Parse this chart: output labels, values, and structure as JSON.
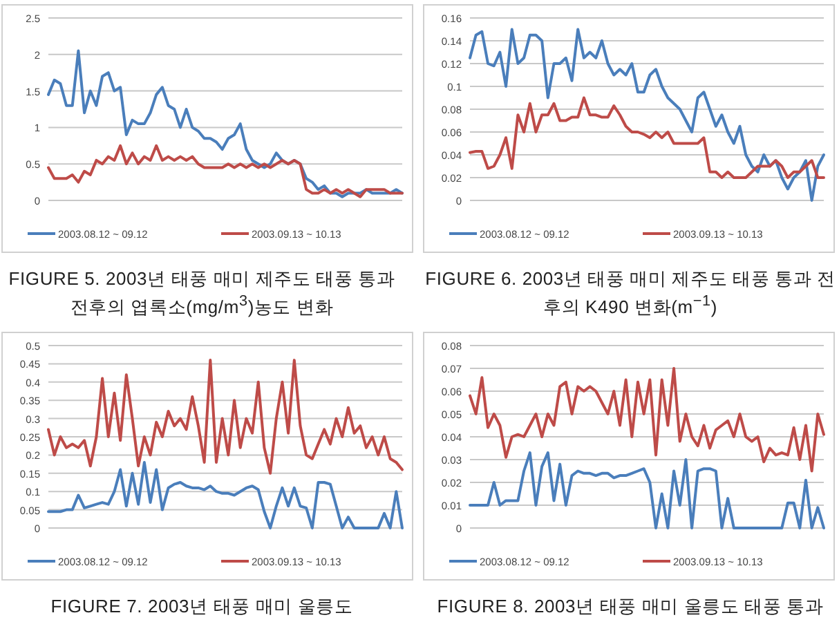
{
  "chart_data": [
    {
      "type": "line",
      "title": "FIGURE 5. 2003년 태풍 매미 제주도 태풍 통과 전후의 엽록소(mg/m$^{3}$)농도 변화",
      "categories": [
        null,
        null,
        null,
        null,
        null,
        null,
        null,
        null,
        null,
        null,
        null,
        null,
        null,
        null,
        null,
        null,
        null,
        null,
        null,
        null,
        null,
        null,
        null,
        null,
        null,
        null,
        null,
        null,
        null,
        null,
        null,
        null,
        null,
        null,
        null,
        null,
        null,
        null,
        null,
        null,
        null,
        null,
        null,
        null,
        null,
        null,
        null,
        null,
        null,
        null,
        null,
        null,
        null,
        null,
        null,
        null,
        null,
        null,
        null,
        null
      ],
      "ylim": [
        0,
        2.5
      ],
      "yticks": [
        0,
        0.5,
        1,
        1.5,
        2,
        2.5
      ],
      "grid": "y",
      "legend": "bottom",
      "tick_labels": "y",
      "series": [
        {
          "name": "2003.08.12 ~ 09.12",
          "color": "#4a7ebb",
          "values": [
            1.45,
            1.65,
            1.6,
            1.3,
            1.3,
            2.05,
            1.2,
            1.5,
            1.3,
            1.7,
            1.75,
            1.5,
            1.55,
            0.9,
            1.1,
            1.05,
            1.05,
            1.2,
            1.45,
            1.55,
            1.3,
            1.25,
            1.0,
            1.25,
            1.0,
            0.95,
            0.85,
            0.85,
            0.8,
            0.7,
            0.85,
            0.9,
            1.05,
            0.7,
            0.55,
            0.5,
            0.45,
            0.5,
            0.65,
            0.55,
            0.5,
            0.55,
            0.5,
            0.3,
            0.25,
            0.15,
            0.2,
            0.1,
            0.1,
            0.05,
            0.1,
            0.1,
            0.1,
            0.15,
            0.1,
            0.1,
            0.1,
            0.1,
            0.15,
            0.1
          ]
        },
        {
          "name": "2003.09.13 ~ 10.13",
          "color": "#be4b48",
          "values": [
            0.45,
            0.3,
            0.3,
            0.3,
            0.35,
            0.25,
            0.4,
            0.35,
            0.55,
            0.5,
            0.6,
            0.55,
            0.75,
            0.5,
            0.65,
            0.5,
            0.6,
            0.55,
            0.75,
            0.55,
            0.6,
            0.55,
            0.6,
            0.55,
            0.6,
            0.5,
            0.45,
            0.45,
            0.45,
            0.45,
            0.5,
            0.45,
            0.5,
            0.45,
            0.5,
            0.45,
            0.5,
            0.45,
            0.5,
            0.55,
            0.5,
            0.55,
            0.5,
            0.15,
            0.1,
            0.1,
            0.15,
            0.1,
            0.15,
            0.1,
            0.15,
            0.1,
            0.05,
            0.15,
            0.15,
            0.15,
            0.15,
            0.1,
            0.1,
            0.1
          ]
        }
      ]
    },
    {
      "type": "line",
      "title": "FIGURE 6. 2003년 태풍 매미 제주도 태풍 통과 전후의 K490 변화(m$^{−1}$)",
      "categories": [
        null,
        null,
        null,
        null,
        null,
        null,
        null,
        null,
        null,
        null,
        null,
        null,
        null,
        null,
        null,
        null,
        null,
        null,
        null,
        null,
        null,
        null,
        null,
        null,
        null,
        null,
        null,
        null,
        null,
        null,
        null,
        null,
        null,
        null,
        null,
        null,
        null,
        null,
        null,
        null,
        null,
        null,
        null,
        null,
        null,
        null,
        null,
        null,
        null,
        null,
        null,
        null,
        null,
        null,
        null,
        null,
        null,
        null,
        null,
        null
      ],
      "ylim": [
        0,
        0.16
      ],
      "yticks": [
        0,
        0.02,
        0.04,
        0.06,
        0.08,
        0.1,
        0.12,
        0.14,
        0.16
      ],
      "grid": "y",
      "legend": "bottom",
      "tick_labels": "y",
      "series": [
        {
          "name": "2003.08.12 ~ 09.12",
          "color": "#4a7ebb",
          "values": [
            0.125,
            0.145,
            0.148,
            0.12,
            0.118,
            0.13,
            0.1,
            0.15,
            0.12,
            0.125,
            0.145,
            0.145,
            0.14,
            0.09,
            0.12,
            0.12,
            0.125,
            0.105,
            0.15,
            0.125,
            0.13,
            0.125,
            0.14,
            0.12,
            0.11,
            0.115,
            0.11,
            0.12,
            0.095,
            0.095,
            0.11,
            0.115,
            0.1,
            0.09,
            0.085,
            0.08,
            0.07,
            0.06,
            0.09,
            0.095,
            0.08,
            0.065,
            0.075,
            0.06,
            0.05,
            0.065,
            0.04,
            0.03,
            0.025,
            0.04,
            0.03,
            0.035,
            0.02,
            0.01,
            0.02,
            0.025,
            0.035,
            0.0,
            0.03,
            0.04
          ]
        },
        {
          "name": "2003.09.13 ~ 10.13",
          "color": "#be4b48",
          "values": [
            0.042,
            0.043,
            0.043,
            0.028,
            0.03,
            0.04,
            0.055,
            0.028,
            0.075,
            0.06,
            0.085,
            0.06,
            0.075,
            0.075,
            0.085,
            0.07,
            0.07,
            0.073,
            0.073,
            0.09,
            0.075,
            0.075,
            0.073,
            0.073,
            0.083,
            0.075,
            0.065,
            0.06,
            0.06,
            0.058,
            0.055,
            0.06,
            0.055,
            0.06,
            0.05,
            0.05,
            0.05,
            0.05,
            0.05,
            0.055,
            0.025,
            0.025,
            0.02,
            0.025,
            0.02,
            0.02,
            0.02,
            0.025,
            0.03,
            0.03,
            0.03,
            0.035,
            0.03,
            0.02,
            0.025,
            0.025,
            0.03,
            0.035,
            0.02,
            0.02
          ]
        }
      ]
    },
    {
      "type": "line",
      "title": "FIGURE 7. 2003년 태풍 매미 울릉도",
      "categories": [
        null,
        null,
        null,
        null,
        null,
        null,
        null,
        null,
        null,
        null,
        null,
        null,
        null,
        null,
        null,
        null,
        null,
        null,
        null,
        null,
        null,
        null,
        null,
        null,
        null,
        null,
        null,
        null,
        null,
        null,
        null,
        null,
        null,
        null,
        null,
        null,
        null,
        null,
        null,
        null,
        null,
        null,
        null,
        null,
        null,
        null,
        null,
        null,
        null,
        null,
        null,
        null,
        null,
        null,
        null,
        null,
        null,
        null,
        null,
        null
      ],
      "ylim": [
        0,
        0.5
      ],
      "yticks": [
        0,
        0.05,
        0.1,
        0.15,
        0.2,
        0.25,
        0.3,
        0.35,
        0.4,
        0.45,
        0.5
      ],
      "grid": "y",
      "legend": "bottom",
      "tick_labels": "y",
      "series": [
        {
          "name": "2003.08.12 ~ 09.12",
          "color": "#4a7ebb",
          "values": [
            0.045,
            0.045,
            0.045,
            0.05,
            0.05,
            0.09,
            0.055,
            0.06,
            0.065,
            0.07,
            0.065,
            0.1,
            0.16,
            0.06,
            0.15,
            0.065,
            0.18,
            0.07,
            0.16,
            0.05,
            0.11,
            0.12,
            0.125,
            0.115,
            0.11,
            0.11,
            0.105,
            0.115,
            0.1,
            0.095,
            0.095,
            0.09,
            0.1,
            0.11,
            0.115,
            0.105,
            0.045,
            0.0,
            0.06,
            0.11,
            0.06,
            0.11,
            0.06,
            0.055,
            0.0,
            0.125,
            0.125,
            0.12,
            0.06,
            0.0,
            0.03,
            0.0,
            0.0,
            0.0,
            0.0,
            0.0,
            0.04,
            0.0,
            0.1,
            0.0
          ]
        },
        {
          "name": "2003.09.13 ~ 10.13",
          "color": "#be4b48",
          "values": [
            0.27,
            0.2,
            0.25,
            0.22,
            0.23,
            0.22,
            0.24,
            0.17,
            0.25,
            0.41,
            0.25,
            0.37,
            0.24,
            0.42,
            0.3,
            0.17,
            0.25,
            0.2,
            0.29,
            0.25,
            0.32,
            0.28,
            0.3,
            0.27,
            0.36,
            0.28,
            0.18,
            0.46,
            0.18,
            0.3,
            0.2,
            0.35,
            0.22,
            0.3,
            0.26,
            0.4,
            0.22,
            0.15,
            0.3,
            0.4,
            0.26,
            0.46,
            0.28,
            0.2,
            0.19,
            0.23,
            0.27,
            0.23,
            0.3,
            0.25,
            0.33,
            0.26,
            0.28,
            0.22,
            0.25,
            0.2,
            0.25,
            0.19,
            0.18,
            0.16
          ]
        }
      ]
    },
    {
      "type": "line",
      "title": "FIGURE 8. 2003년 태풍 매미 울릉도 태풍 통과",
      "categories": [
        null,
        null,
        null,
        null,
        null,
        null,
        null,
        null,
        null,
        null,
        null,
        null,
        null,
        null,
        null,
        null,
        null,
        null,
        null,
        null,
        null,
        null,
        null,
        null,
        null,
        null,
        null,
        null,
        null,
        null,
        null,
        null,
        null,
        null,
        null,
        null,
        null,
        null,
        null,
        null,
        null,
        null,
        null,
        null,
        null,
        null,
        null,
        null,
        null,
        null,
        null,
        null,
        null,
        null,
        null,
        null,
        null,
        null,
        null,
        null
      ],
      "ylim": [
        0,
        0.08
      ],
      "yticks": [
        0,
        0.01,
        0.02,
        0.03,
        0.04,
        0.05,
        0.06,
        0.07,
        0.08
      ],
      "grid": "y",
      "legend": "bottom",
      "tick_labels": "y",
      "series": [
        {
          "name": "2003.08.12 ~ 09.12",
          "color": "#4a7ebb",
          "values": [
            0.01,
            0.01,
            0.01,
            0.01,
            0.02,
            0.01,
            0.012,
            0.012,
            0.012,
            0.025,
            0.033,
            0.01,
            0.027,
            0.033,
            0.012,
            0.028,
            0.01,
            0.023,
            0.025,
            0.024,
            0.024,
            0.023,
            0.024,
            0.024,
            0.022,
            0.023,
            0.023,
            0.024,
            0.025,
            0.026,
            0.02,
            0.0,
            0.015,
            0.0,
            0.025,
            0.01,
            0.03,
            0.0,
            0.025,
            0.026,
            0.026,
            0.025,
            0.0,
            0.013,
            0.0,
            0.0,
            0.0,
            0.0,
            0.0,
            0.0,
            0.0,
            0.0,
            0.0,
            0.011,
            0.011,
            0.0,
            0.021,
            0.0,
            0.009,
            0.0
          ]
        },
        {
          "name": "2003.09.13 ~ 10.13",
          "color": "#be4b48",
          "values": [
            0.058,
            0.05,
            0.066,
            0.044,
            0.05,
            0.045,
            0.031,
            0.04,
            0.041,
            0.04,
            0.045,
            0.05,
            0.04,
            0.05,
            0.045,
            0.062,
            0.064,
            0.05,
            0.062,
            0.06,
            0.062,
            0.06,
            0.055,
            0.05,
            0.06,
            0.045,
            0.065,
            0.04,
            0.064,
            0.05,
            0.065,
            0.032,
            0.065,
            0.045,
            0.07,
            0.038,
            0.05,
            0.04,
            0.036,
            0.045,
            0.035,
            0.043,
            0.045,
            0.047,
            0.04,
            0.05,
            0.04,
            0.038,
            0.04,
            0.029,
            0.035,
            0.032,
            0.033,
            0.032,
            0.044,
            0.03,
            0.045,
            0.025,
            0.05,
            0.041
          ]
        }
      ]
    }
  ]
}
